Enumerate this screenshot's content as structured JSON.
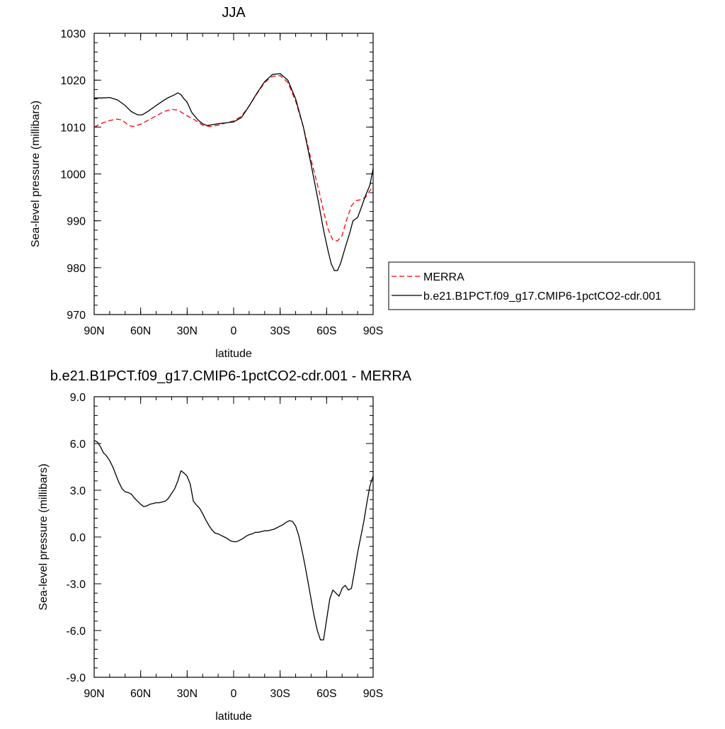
{
  "chart_data": [
    {
      "type": "line",
      "title": "JJA",
      "xlabel": "latitude",
      "ylabel": "Sea-level pressure (millibars)",
      "xlim": [
        90,
        -90
      ],
      "ylim": [
        970,
        1030
      ],
      "xticks": [
        90,
        60,
        30,
        0,
        -30,
        -60,
        -90
      ],
      "xtick_labels": [
        "90N",
        "60N",
        "30N",
        "0",
        "30S",
        "60S",
        "90S"
      ],
      "yticks": [
        970,
        980,
        990,
        1000,
        1010,
        1020,
        1030
      ],
      "ytick_labels": [
        "970",
        "980",
        "990",
        "1000",
        "1010",
        "1020",
        "1030"
      ],
      "legend": {
        "placement": "right"
      },
      "series": [
        {
          "name": "MERRA",
          "color": "#ff0000",
          "dash": "dashed",
          "x": [
            90,
            85,
            80,
            75,
            72,
            68,
            65,
            60,
            55,
            50,
            45,
            40,
            36,
            33,
            30,
            25,
            20,
            15,
            10,
            5,
            0,
            -5,
            -10,
            -15,
            -20,
            -25,
            -30,
            -35,
            -40,
            -45,
            -50,
            -55,
            -58,
            -61,
            -64,
            -67,
            -70,
            -73,
            -76,
            -79,
            -82,
            -85,
            -88,
            -90
          ],
          "y": [
            1010.0,
            1010.8,
            1011.4,
            1011.7,
            1011.5,
            1010.4,
            1010.1,
            1010.6,
            1011.5,
            1012.4,
            1013.3,
            1013.8,
            1013.6,
            1013.0,
            1012.4,
            1011.5,
            1010.4,
            1010.1,
            1010.4,
            1010.9,
            1011.3,
            1012.3,
            1014.5,
            1017.1,
            1019.5,
            1020.8,
            1021.0,
            1019.5,
            1015.5,
            1010.0,
            1003.0,
            996.5,
            992.0,
            988.2,
            985.9,
            985.7,
            986.9,
            990.3,
            993.2,
            994.3,
            994.5,
            995.0,
            996.5,
            997.2
          ]
        },
        {
          "name": "b.e21.B1PCT.f09_g17.CMIP6-1pctCO2-cdr.001",
          "color": "#000000",
          "dash": "solid",
          "x": [
            90,
            85,
            80,
            75,
            70,
            66,
            62,
            59,
            55,
            50,
            45,
            42,
            40,
            38,
            36,
            34,
            32,
            30,
            27,
            23,
            20,
            17,
            14,
            10,
            5,
            0,
            -5,
            -10,
            -15,
            -20,
            -25,
            -30,
            -35,
            -40,
            -45,
            -50,
            -55,
            -58,
            -61,
            -63,
            -65,
            -67,
            -69,
            -72,
            -75,
            -77,
            -80,
            -82,
            -85,
            -88,
            -90
          ],
          "y": [
            1016.2,
            1016.2,
            1016.3,
            1015.8,
            1014.6,
            1013.3,
            1012.6,
            1012.6,
            1013.4,
            1014.6,
            1015.7,
            1016.3,
            1016.6,
            1016.9,
            1017.3,
            1016.9,
            1016.0,
            1015.3,
            1013.1,
            1011.5,
            1010.7,
            1010.3,
            1010.5,
            1010.7,
            1010.9,
            1011.1,
            1012.0,
            1014.5,
            1017.2,
            1019.7,
            1021.2,
            1021.4,
            1020.0,
            1016.0,
            1010.0,
            1002.0,
            993.5,
            988.0,
            983.5,
            980.8,
            979.4,
            979.4,
            980.9,
            984.3,
            987.5,
            990.0,
            990.7,
            992.5,
            995.3,
            997.7,
            1001.2
          ]
        }
      ]
    },
    {
      "type": "line",
      "title": "b.e21.B1PCT.f09_g17.CMIP6-1pctCO2-cdr.001 - MERRA",
      "xlabel": "latitude",
      "ylabel": "Sea-level pressure (millibars)",
      "xlim": [
        90,
        -90
      ],
      "ylim": [
        -9,
        9
      ],
      "xticks": [
        90,
        60,
        30,
        0,
        -30,
        -60,
        -90
      ],
      "xtick_labels": [
        "90N",
        "60N",
        "30N",
        "0",
        "30S",
        "60S",
        "90S"
      ],
      "yticks": [
        -9,
        -6,
        -3,
        0,
        3,
        6,
        9
      ],
      "ytick_labels": [
        "-9.0",
        "-6.0",
        "-3.0",
        "0.0",
        "3.0",
        "6.0",
        "9.0"
      ],
      "series": [
        {
          "color": "#000000",
          "dash": "solid",
          "x": [
            90,
            88,
            86,
            84,
            82,
            80,
            78,
            76,
            74,
            72,
            70,
            68,
            66,
            64,
            62,
            60,
            58,
            56,
            54,
            52,
            50,
            48,
            46,
            44,
            42,
            40,
            38,
            36,
            34,
            32,
            30,
            28,
            26,
            24,
            22,
            20,
            18,
            16,
            14,
            12,
            10,
            8,
            6,
            4,
            2,
            0,
            -2,
            -4,
            -6,
            -8,
            -10,
            -12,
            -14,
            -16,
            -18,
            -20,
            -22,
            -24,
            -26,
            -28,
            -30,
            -32,
            -34,
            -36,
            -38,
            -40,
            -42,
            -44,
            -46,
            -48,
            -50,
            -52,
            -54,
            -56,
            -58,
            -60,
            -62,
            -64,
            -66,
            -68,
            -70,
            -72,
            -74,
            -76,
            -78,
            -80,
            -82,
            -84,
            -86,
            -88,
            -90
          ],
          "y": [
            6.2,
            6.1,
            5.8,
            5.4,
            5.2,
            4.9,
            4.5,
            4.0,
            3.5,
            3.1,
            2.9,
            2.85,
            2.75,
            2.5,
            2.3,
            2.1,
            1.95,
            2.0,
            2.1,
            2.15,
            2.2,
            2.2,
            2.25,
            2.3,
            2.5,
            2.8,
            3.1,
            3.6,
            4.25,
            4.1,
            3.9,
            3.4,
            2.3,
            2.05,
            1.85,
            1.5,
            1.1,
            0.75,
            0.45,
            0.25,
            0.2,
            0.1,
            0.0,
            -0.1,
            -0.25,
            -0.3,
            -0.3,
            -0.2,
            -0.1,
            0.05,
            0.15,
            0.2,
            0.3,
            0.3,
            0.35,
            0.4,
            0.4,
            0.45,
            0.5,
            0.6,
            0.7,
            0.8,
            0.95,
            1.05,
            1.0,
            0.7,
            0.1,
            -0.8,
            -1.8,
            -2.9,
            -4.0,
            -5.1,
            -6.0,
            -6.6,
            -6.6,
            -5.3,
            -4.0,
            -3.4,
            -3.6,
            -3.8,
            -3.3,
            -3.1,
            -3.4,
            -3.3,
            -2.2,
            -1.0,
            0.0,
            1.0,
            2.2,
            3.3,
            3.9
          ]
        }
      ]
    }
  ]
}
